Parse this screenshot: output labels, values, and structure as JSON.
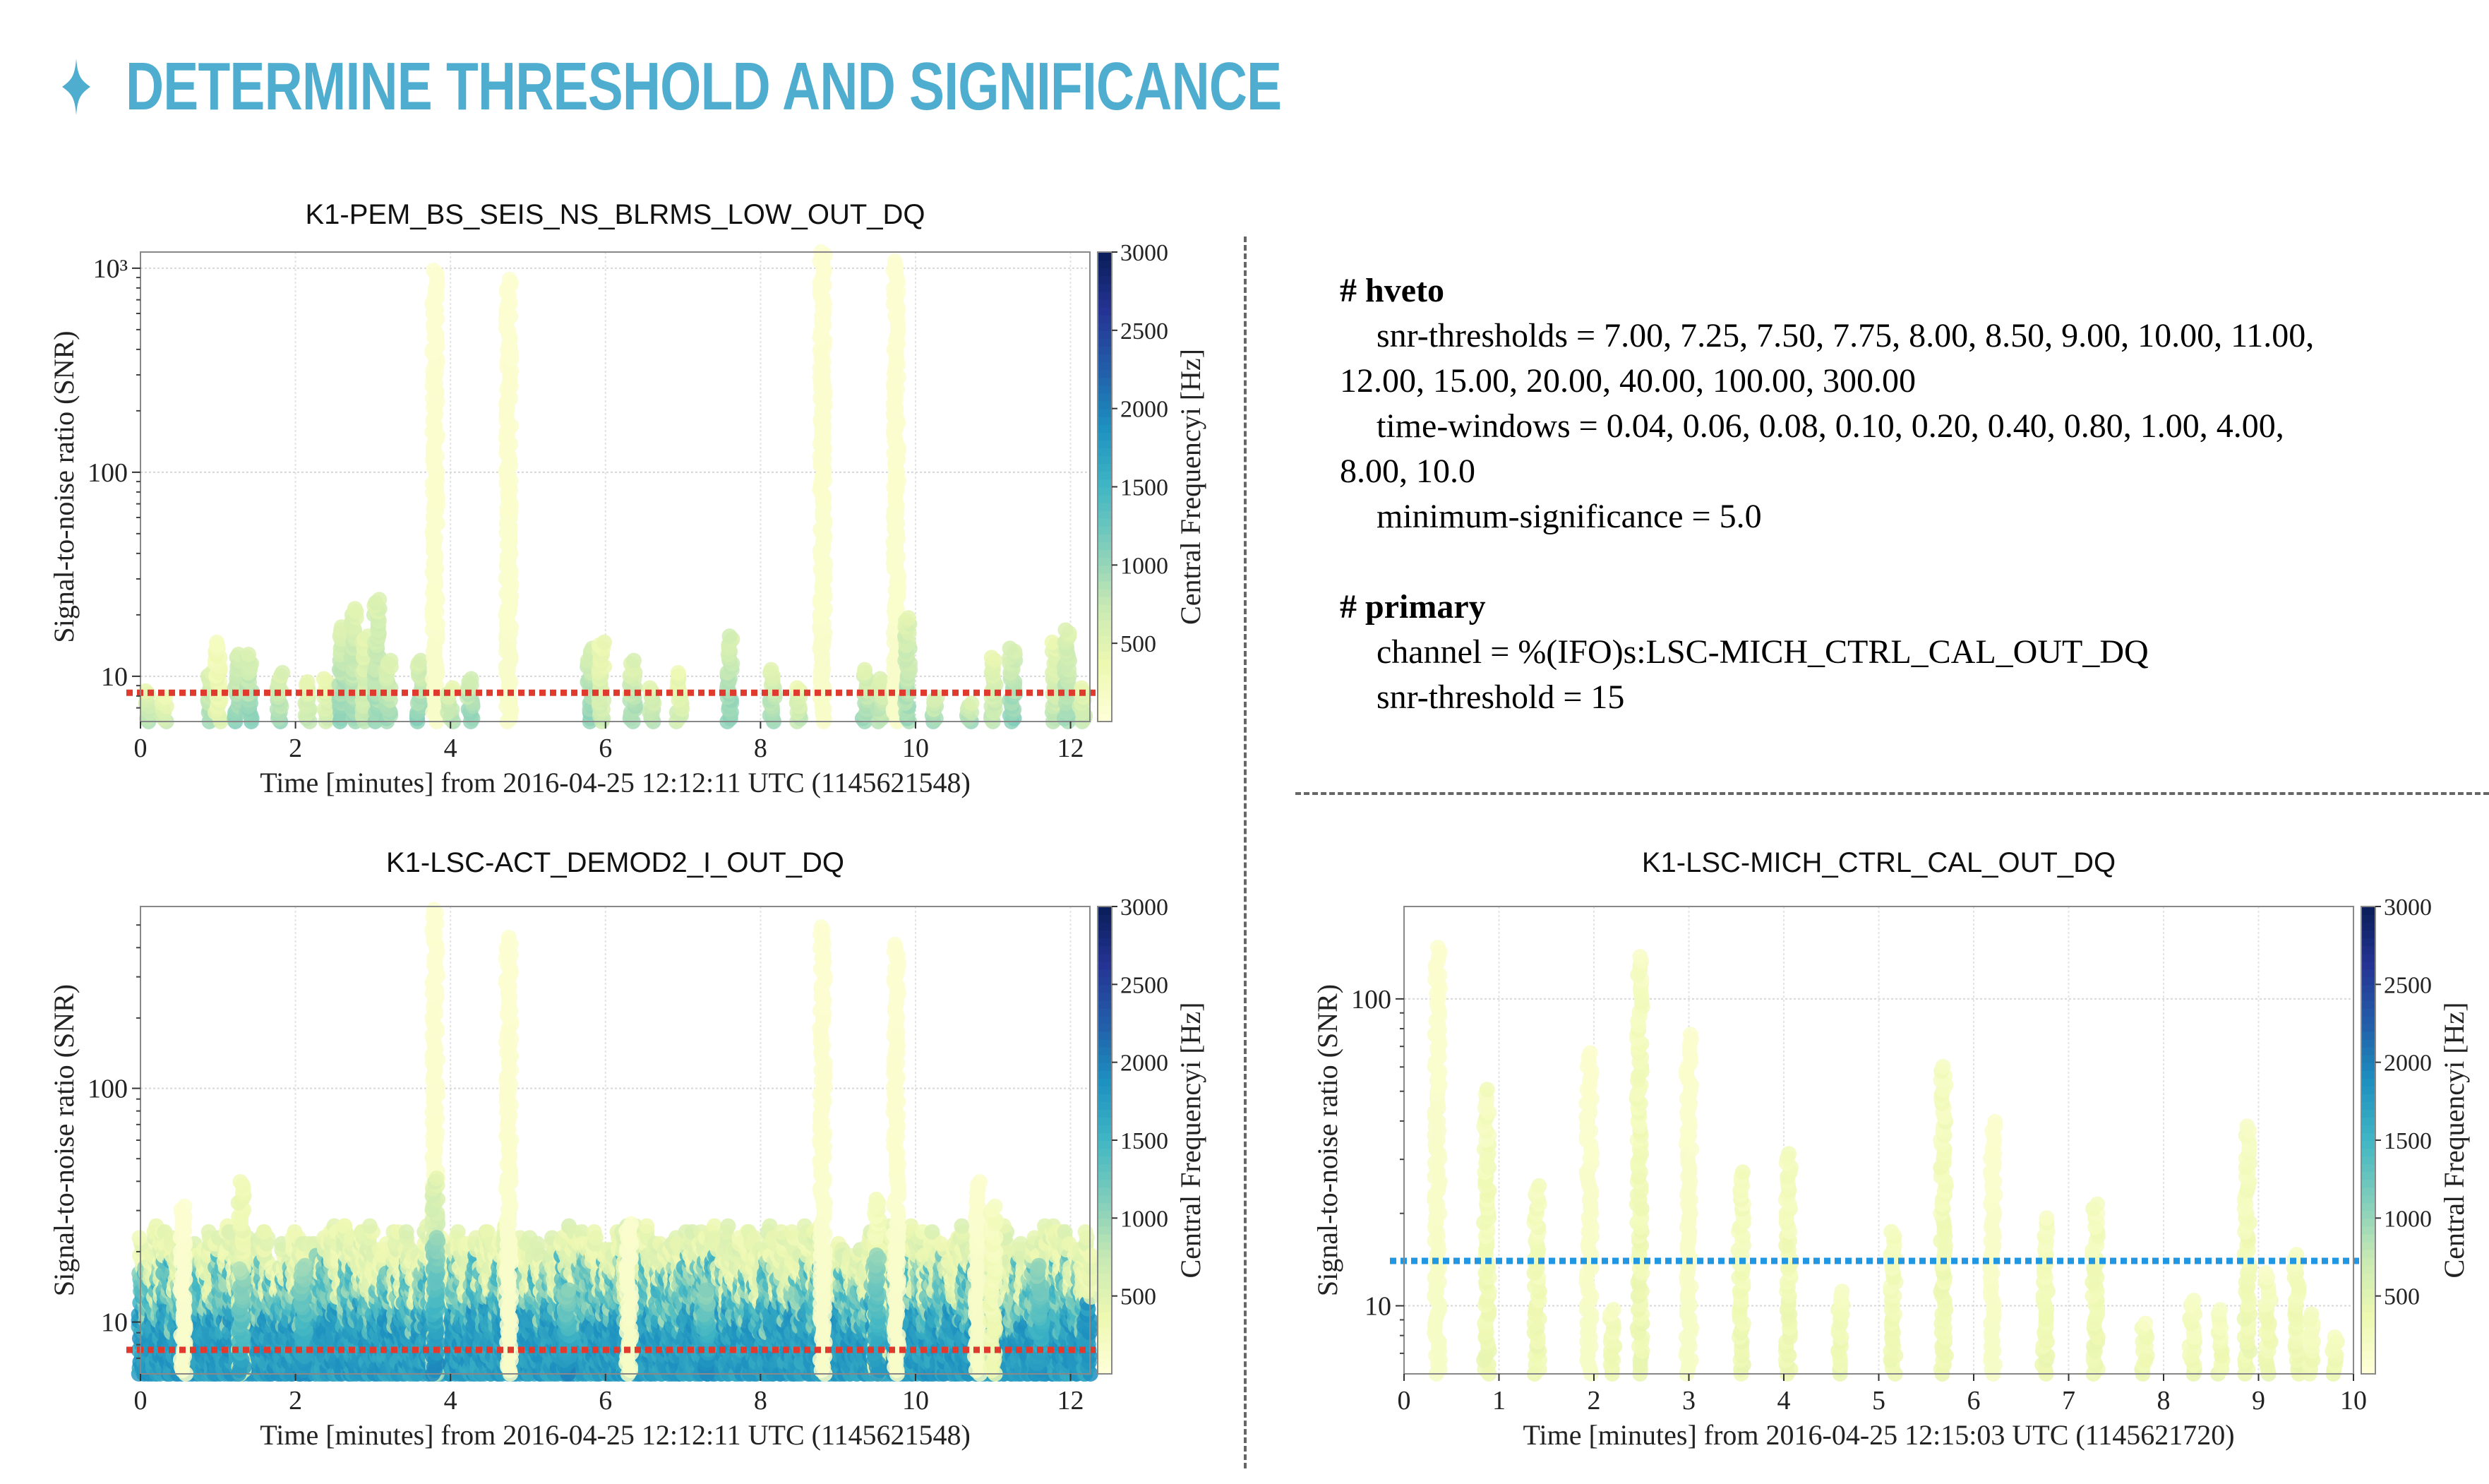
{
  "slide": {
    "title": "DETERMINE THRESHOLD AND SIGNIFICANCE",
    "title_icon": "four-point-star-icon",
    "accent_color": "#4fadcf"
  },
  "config": {
    "sections": [
      {
        "header": "# hveto",
        "lines": [
          {
            "text": "snr-thresholds = 7.00, 7.25, 7.50, 7.75, 8.00, 8.50, 9.00, 10.00, 11.00,",
            "indent": true
          },
          {
            "text": "12.00, 15.00, 20.00, 40.00, 100.00, 300.00",
            "indent": false
          },
          {
            "text": "time-windows = 0.04, 0.06, 0.08, 0.10, 0.20, 0.40, 0.80, 1.00, 4.00,",
            "indent": true
          },
          {
            "text": "8.00, 10.0",
            "indent": false
          },
          {
            "text": "minimum-significance = 5.0",
            "indent": true
          }
        ]
      },
      {
        "header": "# primary",
        "lines": [
          {
            "text": "channel = %(IFO)s:LSC-MICH_CTRL_CAL_OUT_DQ",
            "indent": true
          },
          {
            "text": "snr-threshold = 15",
            "indent": true
          }
        ]
      }
    ]
  },
  "chart_data": [
    {
      "type": "scatter",
      "title": "K1-PEM_BS_SEIS_NS_BLRMS_LOW_OUT_DQ",
      "xlabel": "Time [minutes] from 2016-04-25 12:12:11 UTC (1145621548)",
      "ylabel": "Signal-to-noise ratio (SNR)",
      "yscale": "log",
      "xlim": [
        0,
        12.25
      ],
      "ylim": [
        6,
        1200
      ],
      "xticks": [
        0,
        2,
        4,
        6,
        8,
        10,
        12
      ],
      "xtick_labels": [
        "0",
        "2",
        "4",
        "6",
        "8",
        "10",
        "12"
      ],
      "yticks": [
        10,
        100,
        1000
      ],
      "ytick_labels": [
        "10",
        "100",
        "10³"
      ],
      "grid": true,
      "threshold": {
        "value": 8.3,
        "color": "#e03a2f",
        "style": "dotted"
      },
      "colorbar": {
        "label": "Central Frequencyi [Hz]",
        "range": [
          0,
          3000
        ],
        "ticks": [
          500,
          1000,
          1500,
          2000,
          2500,
          3000
        ],
        "cmap": "YlGnBu"
      },
      "columns": [
        {
          "t": 0.1,
          "snr": 8.5,
          "f": 800
        },
        {
          "t": 0.3,
          "snr": 8,
          "f": 600
        },
        {
          "t": 0.9,
          "snr": 10.5,
          "f": 900
        },
        {
          "t": 1.0,
          "snr": 15,
          "f": 400
        },
        {
          "t": 1.25,
          "snr": 13,
          "f": 1000
        },
        {
          "t": 1.4,
          "snr": 13,
          "f": 1000
        },
        {
          "t": 1.8,
          "snr": 10.5,
          "f": 900
        },
        {
          "t": 2.15,
          "snr": 9.5,
          "f": 700
        },
        {
          "t": 2.4,
          "snr": 10,
          "f": 600
        },
        {
          "t": 2.6,
          "snr": 18,
          "f": 1000
        },
        {
          "t": 2.75,
          "snr": 22,
          "f": 900
        },
        {
          "t": 2.9,
          "snr": 16,
          "f": 700
        },
        {
          "t": 3.05,
          "snr": 24,
          "f": 900
        },
        {
          "t": 3.2,
          "snr": 12,
          "f": 900
        },
        {
          "t": 3.6,
          "snr": 12,
          "f": 1000
        },
        {
          "t": 3.8,
          "snr": 1000,
          "f": 150
        },
        {
          "t": 4.0,
          "snr": 9,
          "f": 800
        },
        {
          "t": 4.25,
          "snr": 10,
          "f": 1000
        },
        {
          "t": 4.75,
          "snr": 900,
          "f": 150
        },
        {
          "t": 5.8,
          "snr": 14,
          "f": 1000
        },
        {
          "t": 5.95,
          "snr": 15,
          "f": 600
        },
        {
          "t": 6.35,
          "snr": 12,
          "f": 900
        },
        {
          "t": 6.6,
          "snr": 9,
          "f": 800
        },
        {
          "t": 6.95,
          "snr": 10.5,
          "f": 600
        },
        {
          "t": 7.6,
          "snr": 16,
          "f": 1000
        },
        {
          "t": 8.15,
          "snr": 11,
          "f": 900
        },
        {
          "t": 8.5,
          "snr": 9,
          "f": 700
        },
        {
          "t": 8.8,
          "snr": 1200,
          "f": 150
        },
        {
          "t": 9.35,
          "snr": 11,
          "f": 900
        },
        {
          "t": 9.55,
          "snr": 10,
          "f": 800
        },
        {
          "t": 9.75,
          "snr": 1100,
          "f": 150
        },
        {
          "t": 9.9,
          "snr": 20,
          "f": 900
        },
        {
          "t": 10.25,
          "snr": 8,
          "f": 900
        },
        {
          "t": 10.7,
          "snr": 7.5,
          "f": 900
        },
        {
          "t": 11.0,
          "snr": 12.5,
          "f": 700
        },
        {
          "t": 11.25,
          "snr": 14,
          "f": 1000
        },
        {
          "t": 11.8,
          "snr": 15,
          "f": 700
        },
        {
          "t": 11.95,
          "snr": 17,
          "f": 900
        },
        {
          "t": 12.15,
          "snr": 9,
          "f": 700
        }
      ]
    },
    {
      "type": "scatter",
      "title": "K1-LSC-ACT_DEMOD2_I_OUT_DQ",
      "xlabel": "Time [minutes] from 2016-04-25 12:12:11 UTC (1145621548)",
      "ylabel": "Signal-to-noise ratio (SNR)",
      "yscale": "log",
      "xlim": [
        0,
        12.25
      ],
      "ylim": [
        6,
        600
      ],
      "xticks": [
        0,
        2,
        4,
        6,
        8,
        10,
        12
      ],
      "xtick_labels": [
        "0",
        "2",
        "4",
        "6",
        "8",
        "10",
        "12"
      ],
      "yticks": [
        10,
        100
      ],
      "ytick_labels": [
        "10",
        "100"
      ],
      "grid": true,
      "threshold": {
        "value": 7.6,
        "color": "#e03a2f",
        "style": "dotted"
      },
      "colorbar": {
        "label": "Central Frequencyi [Hz]",
        "range": [
          0,
          3000
        ],
        "ticks": [
          500,
          1000,
          1500,
          2000,
          2500,
          3000
        ],
        "cmap": "YlGnBu"
      },
      "background_band": {
        "low_snr_max": 10,
        "low_freq": 1900,
        "mid_snr_max": 16,
        "mid_freq": 900,
        "top_snr_max": 22,
        "top_freq": 300
      },
      "columns": [
        {
          "t": 0.55,
          "snr": 32,
          "f": 150
        },
        {
          "t": 1.3,
          "snr": 40,
          "f": 500
        },
        {
          "t": 1.3,
          "snr": 17,
          "f": 1700
        },
        {
          "t": 2.1,
          "snr": 18,
          "f": 1800
        },
        {
          "t": 3.8,
          "snr": 600,
          "f": 150
        },
        {
          "t": 3.8,
          "snr": 42,
          "f": 900
        },
        {
          "t": 3.8,
          "snr": 23,
          "f": 1900
        },
        {
          "t": 4.75,
          "snr": 450,
          "f": 150
        },
        {
          "t": 5.5,
          "snr": 14,
          "f": 1900
        },
        {
          "t": 6.3,
          "snr": 27,
          "f": 200
        },
        {
          "t": 7.3,
          "snr": 14,
          "f": 1900
        },
        {
          "t": 8.8,
          "snr": 500,
          "f": 150
        },
        {
          "t": 9.5,
          "snr": 34,
          "f": 400
        },
        {
          "t": 9.5,
          "snr": 20,
          "f": 1800
        },
        {
          "t": 9.75,
          "snr": 420,
          "f": 150
        },
        {
          "t": 10.8,
          "snr": 40,
          "f": 200
        },
        {
          "t": 11.0,
          "snr": 32,
          "f": 300
        },
        {
          "t": 11.6,
          "snr": 18,
          "f": 1800
        }
      ]
    },
    {
      "type": "scatter",
      "title": "K1-LSC-MICH_CTRL_CAL_OUT_DQ",
      "xlabel": "Time [minutes] from 2016-04-25 12:15:03 UTC (1145621720)",
      "ylabel": "Signal-to-noise ratio (SNR)",
      "yscale": "log",
      "xlim": [
        0,
        10
      ],
      "ylim": [
        6,
        200
      ],
      "xticks": [
        0,
        1,
        2,
        3,
        4,
        5,
        6,
        7,
        8,
        9,
        10
      ],
      "xtick_labels": [
        "0",
        "1",
        "2",
        "3",
        "4",
        "5",
        "6",
        "7",
        "8",
        "9",
        "10"
      ],
      "yticks": [
        10,
        100
      ],
      "ytick_labels": [
        "10",
        "100"
      ],
      "grid": true,
      "threshold": {
        "value": 14,
        "color": "#2196e3",
        "style": "dotted"
      },
      "colorbar": {
        "label": "Central Frequencyi [Hz]",
        "range": [
          0,
          3000
        ],
        "ticks": [
          500,
          1000,
          1500,
          2000,
          2500,
          3000
        ],
        "cmap": "YlGnBu"
      },
      "columns": [
        {
          "t": 0.35,
          "snr": 150,
          "f": 200
        },
        {
          "t": 0.87,
          "snr": 52,
          "f": 300
        },
        {
          "t": 1.4,
          "snr": 25,
          "f": 300
        },
        {
          "t": 1.95,
          "snr": 68,
          "f": 200
        },
        {
          "t": 2.2,
          "snr": 10,
          "f": 300
        },
        {
          "t": 2.48,
          "snr": 140,
          "f": 300
        },
        {
          "t": 3.0,
          "snr": 78,
          "f": 200
        },
        {
          "t": 3.55,
          "snr": 28,
          "f": 300
        },
        {
          "t": 4.05,
          "snr": 32,
          "f": 300
        },
        {
          "t": 4.6,
          "snr": 11.5,
          "f": 300
        },
        {
          "t": 5.15,
          "snr": 18,
          "f": 300
        },
        {
          "t": 5.68,
          "snr": 62,
          "f": 300
        },
        {
          "t": 6.2,
          "snr": 41,
          "f": 200
        },
        {
          "t": 6.75,
          "snr": 20,
          "f": 300
        },
        {
          "t": 7.28,
          "snr": 22,
          "f": 300
        },
        {
          "t": 7.8,
          "snr": 9,
          "f": 300
        },
        {
          "t": 8.3,
          "snr": 10.5,
          "f": 300
        },
        {
          "t": 8.6,
          "snr": 10,
          "f": 300
        },
        {
          "t": 8.88,
          "snr": 39,
          "f": 300
        },
        {
          "t": 9.1,
          "snr": 13,
          "f": 300
        },
        {
          "t": 9.4,
          "snr": 15,
          "f": 300
        },
        {
          "t": 9.55,
          "snr": 9.5,
          "f": 300
        },
        {
          "t": 9.8,
          "snr": 8,
          "f": 300
        }
      ]
    }
  ]
}
